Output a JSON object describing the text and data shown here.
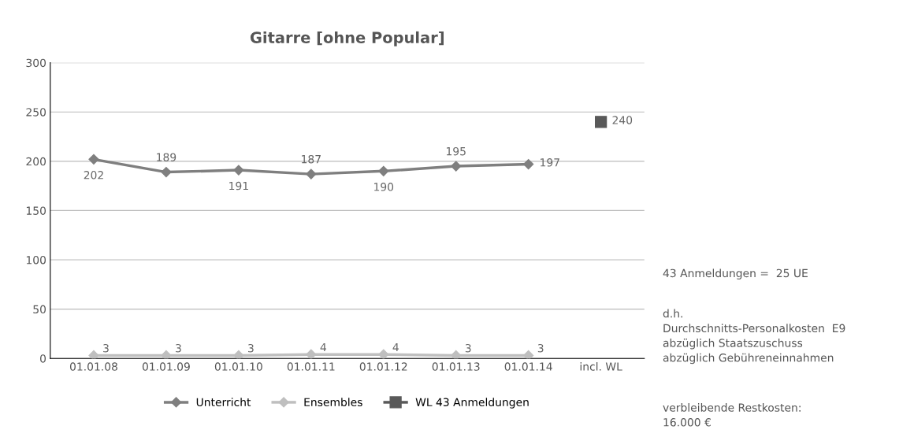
{
  "chart_data": {
    "type": "line",
    "title": "Gitarre [ohne Popular]",
    "categories": [
      "01.01.08",
      "01.01.09",
      "01.01.10",
      "01.01.11",
      "01.01.12",
      "01.01.13",
      "01.01.14",
      "incl. WL"
    ],
    "series": [
      {
        "name": "Unterricht",
        "color": "#7f7f7f",
        "marker": "diamond",
        "values": [
          202,
          189,
          191,
          187,
          190,
          195,
          197,
          null
        ]
      },
      {
        "name": "Ensembles",
        "color": "#bfbfbf",
        "marker": "diamond",
        "values": [
          3,
          3,
          3,
          4,
          4,
          3,
          3,
          null
        ]
      },
      {
        "name": "WL 43 Anmeldungen",
        "color": "#595959",
        "marker": "square",
        "values": [
          null,
          null,
          null,
          null,
          null,
          null,
          null,
          240
        ]
      }
    ],
    "ylim": [
      0,
      300
    ],
    "yticks": [
      0,
      50,
      100,
      150,
      200,
      250,
      300
    ],
    "grid": "y",
    "legend": "bottom",
    "data_labels": true,
    "line_style": "solid",
    "annotations": [
      "43 Anmeldungen =  25 UE",
      "d.h.\nDurchschnitts-Personalkosten  E9\nabzüglich Staatszuschuss\nabzüglich Gebühreneinnahmen",
      "verbleibende Restkosten:\n16.000 €"
    ]
  }
}
